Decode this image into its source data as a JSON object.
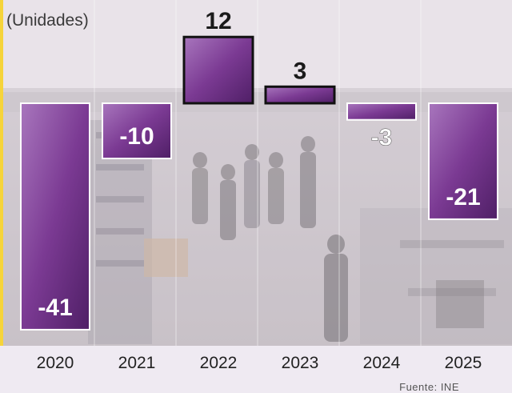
{
  "chart_data": {
    "type": "bar",
    "subtitle": "(Unidades)",
    "categories": [
      "2020",
      "2021",
      "2022",
      "2023",
      "2024",
      "2025"
    ],
    "values": [
      -41,
      -10,
      12,
      3,
      -3,
      -21
    ],
    "value_labels": [
      "-41",
      "-10",
      "12",
      "3",
      "-3",
      "-21"
    ],
    "ylim": [
      -44,
      17
    ],
    "grid": false,
    "legend": "none"
  },
  "source": "Fuente: INE",
  "colors": {
    "bar_fill": "#7b3a93",
    "bar_dark": "#4f1f66",
    "bar_light": "#a876bd",
    "label_light": "#ffffff",
    "label_dark": "#1a1a1a"
  }
}
